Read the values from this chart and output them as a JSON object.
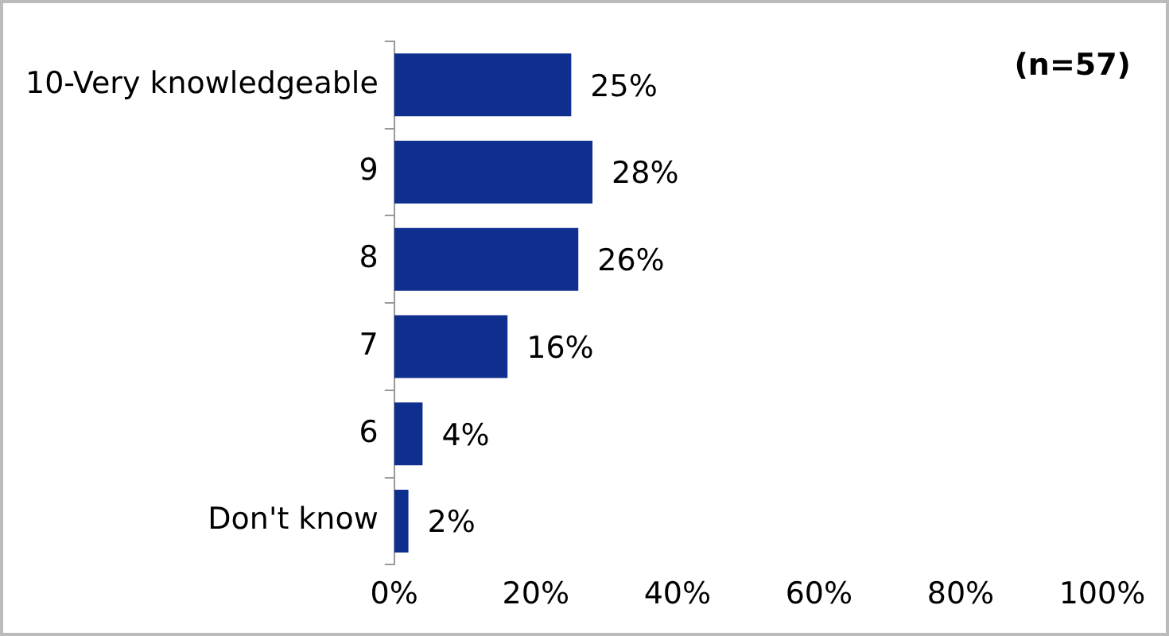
{
  "chart_data": {
    "type": "bar",
    "orientation": "horizontal",
    "categories": [
      "10-Very knowledgeable",
      "9",
      "8",
      "7",
      "6",
      "Don't know"
    ],
    "values": [
      25,
      28,
      26,
      16,
      4,
      2
    ],
    "value_labels": [
      "25%",
      "28%",
      "26%",
      "16%",
      "4%",
      "2%"
    ],
    "color": "#0f2f8f",
    "xlim": [
      0,
      100
    ],
    "xticks": [
      {
        "value": 0,
        "label": "0%"
      },
      {
        "value": 20,
        "label": "20%"
      },
      {
        "value": 40,
        "label": "40%"
      },
      {
        "value": 60,
        "label": "60%"
      },
      {
        "value": 80,
        "label": "80%"
      },
      {
        "value": 100,
        "label": "100%"
      }
    ],
    "annotations": [
      "(n=57)"
    ],
    "grid": false,
    "legend": false
  }
}
